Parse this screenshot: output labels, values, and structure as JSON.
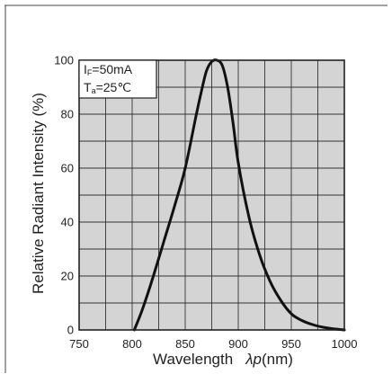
{
  "chart_data": {
    "type": "line",
    "xlabel": "Wavelength",
    "xlabel_symbol": "λp",
    "xlabel_unit": "(nm)",
    "ylabel": "Relative Radiant Intensity (%)",
    "xlim": [
      750,
      1000
    ],
    "ylim": [
      0,
      100
    ],
    "x_ticks": [
      750,
      800,
      850,
      900,
      950,
      1000
    ],
    "y_ticks": [
      0,
      20,
      40,
      60,
      80,
      100
    ],
    "x_grid_step": 25,
    "y_grid_step": 10,
    "grid": true,
    "plot_background": "#d4d4d4",
    "line_color": "#111111",
    "annotation": {
      "lines": [
        {
          "main": "I",
          "sub": "F",
          "rest": "=50mA"
        },
        {
          "main": "T",
          "sub": "a",
          "rest": "=25℃"
        }
      ],
      "placement": "top-left"
    },
    "series": [
      {
        "x": [
          802,
          810,
          820,
          830,
          840,
          850,
          860,
          865,
          870,
          875,
          880,
          885,
          890,
          895,
          900,
          910,
          920,
          930,
          940,
          950,
          960,
          970,
          980,
          990,
          1000
        ],
        "y": [
          0,
          8,
          20,
          33,
          46,
          60,
          79,
          88,
          96,
          99.5,
          100,
          98,
          90,
          77,
          62,
          42,
          28,
          18,
          11,
          6,
          3.5,
          2,
          1,
          0.4,
          0
        ]
      }
    ]
  }
}
